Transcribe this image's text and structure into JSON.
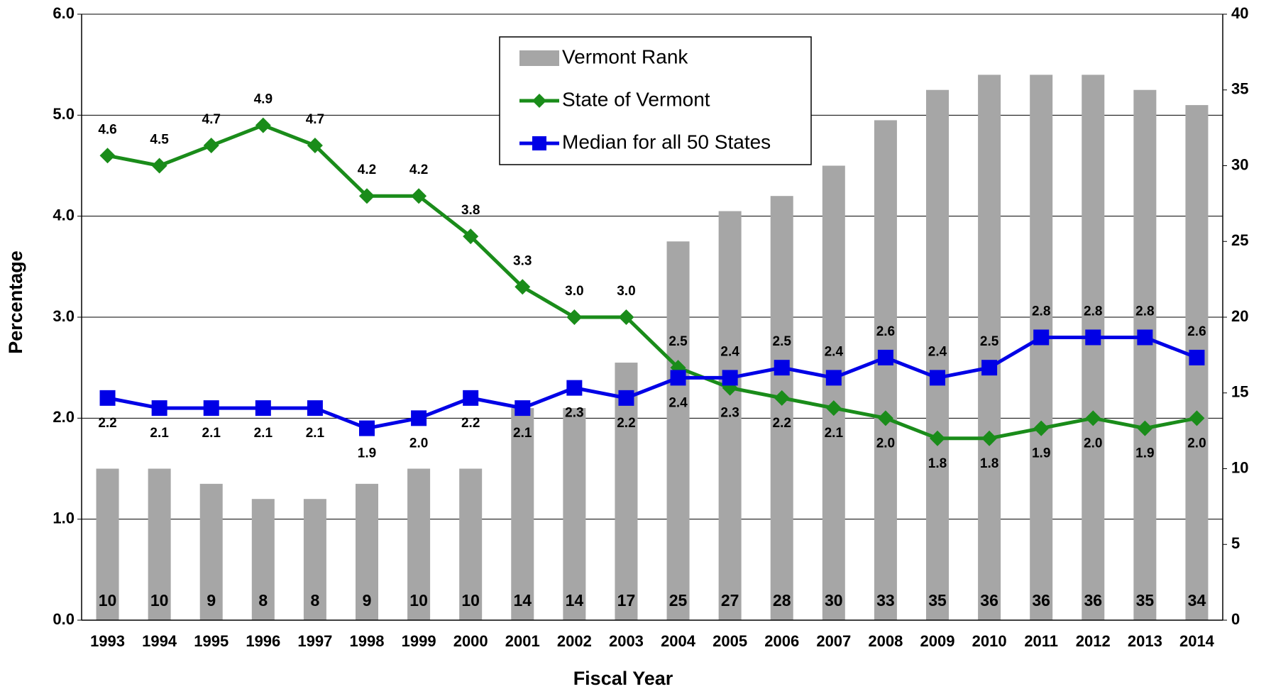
{
  "chart_data": {
    "type": "bar-line",
    "x_label": "Fiscal Year",
    "y_label": "Percentage",
    "categories": [
      "1993",
      "1994",
      "1995",
      "1996",
      "1997",
      "1998",
      "1999",
      "2000",
      "2001",
      "2002",
      "2003",
      "2004",
      "2005",
      "2006",
      "2007",
      "2008",
      "2009",
      "2010",
      "2011",
      "2012",
      "2013",
      "2014"
    ],
    "series": [
      {
        "name": "Vermont Rank",
        "type": "bar",
        "axis": "y2",
        "color": "#a6a6a6",
        "values": [
          10,
          10,
          9,
          8,
          8,
          9,
          10,
          10,
          14,
          14,
          17,
          25,
          27,
          28,
          30,
          33,
          35,
          36,
          36,
          36,
          35,
          34
        ]
      },
      {
        "name": "State of Vermont",
        "type": "line",
        "color": "#1a8c1a",
        "marker": "diamond",
        "values": [
          4.6,
          4.5,
          4.7,
          4.9,
          4.7,
          4.2,
          4.2,
          3.8,
          3.3,
          3.0,
          3.0,
          2.5,
          2.3,
          2.2,
          2.1,
          2.0,
          1.8,
          1.8,
          1.9,
          2.0,
          1.9,
          2.0
        ],
        "value_labels": [
          "4.6",
          "4.5",
          "4.7",
          "4.9",
          "4.7",
          "4.2",
          "4.2",
          "3.8",
          "3.3",
          "3.0",
          "3.0",
          "2.5",
          "2.3",
          "2.2",
          "2.1",
          "2.0",
          "1.8",
          "1.8",
          "1.9",
          "2.0",
          "1.9",
          "2.0"
        ]
      },
      {
        "name": "Median for all 50 States",
        "type": "line",
        "color": "#0000e6",
        "marker": "square",
        "values": [
          2.2,
          2.1,
          2.1,
          2.1,
          2.1,
          1.9,
          2.0,
          2.2,
          2.1,
          2.3,
          2.2,
          2.4,
          2.4,
          2.5,
          2.4,
          2.6,
          2.4,
          2.5,
          2.8,
          2.8,
          2.8,
          2.6
        ],
        "value_labels": [
          "2.2",
          "2.1",
          "2.1",
          "2.1",
          "2.1",
          "1.9",
          "2.0",
          "2.2",
          "2.1",
          "2.3",
          "2.2",
          "2.4",
          "2.4",
          "2.5",
          "2.4",
          "2.6",
          "2.4",
          "2.5",
          "2.8",
          "2.8",
          "2.8",
          "2.6"
        ]
      }
    ],
    "ylim": [
      0,
      6
    ],
    "yticks": [
      {
        "value": 0,
        "label": "0.0"
      },
      {
        "value": 1,
        "label": "1.0"
      },
      {
        "value": 2,
        "label": "2.0"
      },
      {
        "value": 3,
        "label": "3.0"
      },
      {
        "value": 4,
        "label": "4.0"
      },
      {
        "value": 5,
        "label": "5.0"
      },
      {
        "value": 6,
        "label": "6.0"
      }
    ],
    "y2lim": [
      0,
      40
    ],
    "y2ticks": [
      0,
      5,
      10,
      15,
      20,
      25,
      30,
      35,
      40
    ],
    "grid": true,
    "legend": "top-center"
  }
}
